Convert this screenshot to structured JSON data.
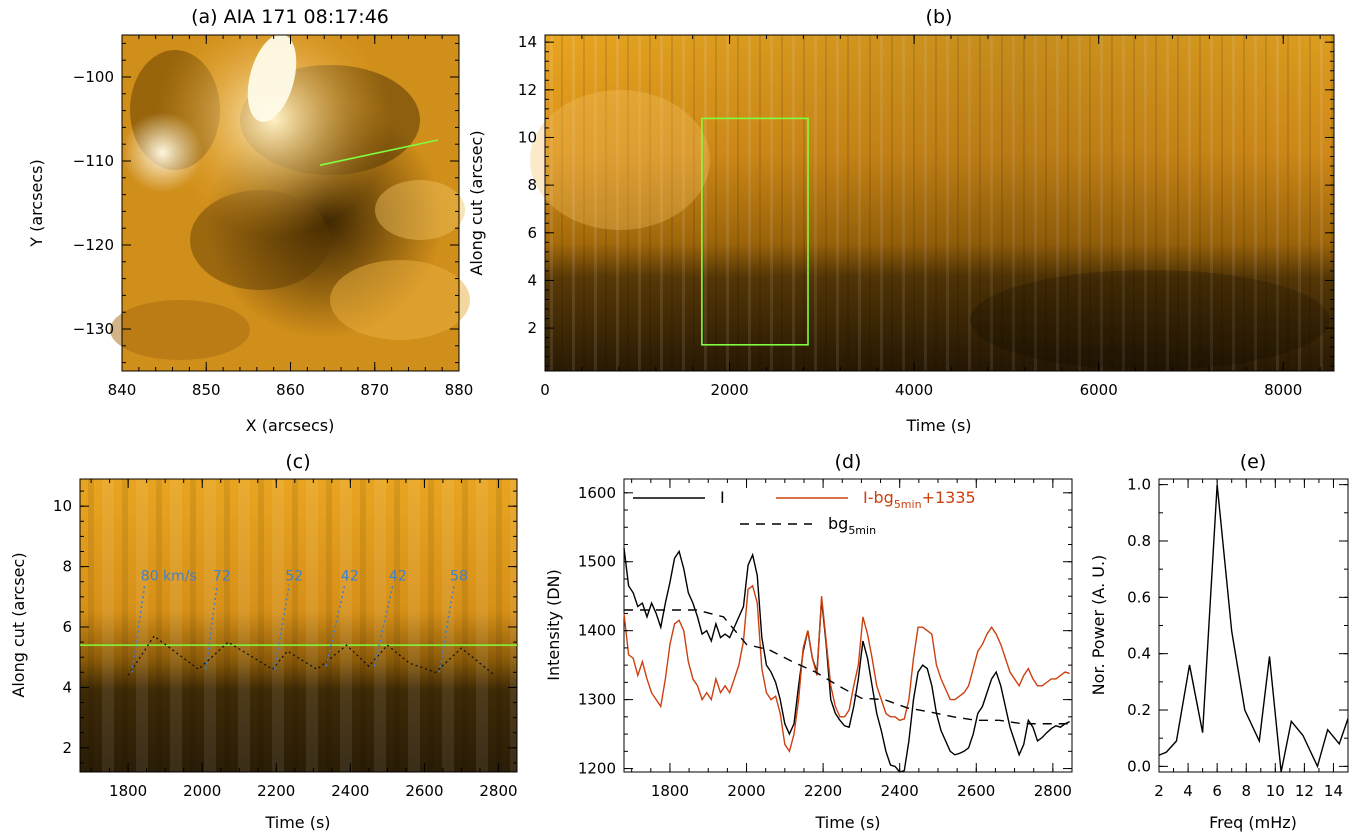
{
  "chart_data": [
    {
      "panel": "a",
      "type": "heatmap",
      "title": "(a) AIA 171 08:17:46",
      "xlabel": "X (arcsecs)",
      "ylabel": "Y (arcsecs)",
      "xlim": [
        840,
        880
      ],
      "ylim": [
        -135,
        -95
      ],
      "xticks": [
        840,
        850,
        860,
        870,
        880
      ],
      "yticks": [
        -100,
        -110,
        -120,
        -130
      ],
      "cut_line": {
        "x": [
          863.5,
          877.5
        ],
        "y": [
          -110.5,
          -107.5
        ],
        "color": "#7fff3f"
      }
    },
    {
      "panel": "b",
      "type": "heatmap",
      "title": "(b)",
      "xlabel": "Time (s)",
      "ylabel": "Along cut (arcsec)",
      "xlim": [
        0,
        8550
      ],
      "ylim": [
        0.2,
        14.3
      ],
      "xticks": [
        0,
        2000,
        4000,
        6000,
        8000
      ],
      "yticks": [
        2,
        4,
        6,
        8,
        10,
        12,
        14
      ],
      "box": {
        "x": [
          1700,
          2850
        ],
        "y": [
          1.3,
          10.8
        ],
        "color": "#7fff3f"
      }
    },
    {
      "panel": "c",
      "type": "heatmap",
      "title": "(c)",
      "xlabel": "Time (s)",
      "ylabel": "Along cut (arcsec)",
      "xlim": [
        1670,
        2850
      ],
      "ylim": [
        1.2,
        10.9
      ],
      "xticks": [
        1800,
        2000,
        2200,
        2400,
        2600,
        2800
      ],
      "yticks": [
        2,
        4,
        6,
        8,
        10
      ],
      "hline": {
        "y": 5.4,
        "color": "#7fff3f"
      },
      "track": {
        "x": [
          1800,
          1870,
          1990,
          2070,
          2190,
          2230,
          2310,
          2390,
          2450,
          2500,
          2560,
          2630,
          2700,
          2790
        ],
        "y": [
          4.4,
          5.7,
          4.6,
          5.5,
          4.6,
          5.2,
          4.6,
          5.4,
          4.7,
          5.4,
          4.8,
          4.5,
          5.3,
          4.4
        ]
      },
      "speed_fits": [
        {
          "label": "80 km/s",
          "x": [
            1810,
            1845
          ],
          "y": [
            4.5,
            7.4
          ]
        },
        {
          "label": "72",
          "x": [
            2010,
            2040
          ],
          "y": [
            4.6,
            7.4
          ]
        },
        {
          "label": "52",
          "x": [
            2195,
            2235
          ],
          "y": [
            4.6,
            7.4
          ]
        },
        {
          "label": "42",
          "x": [
            2335,
            2385
          ],
          "y": [
            4.7,
            7.4
          ]
        },
        {
          "label": "42",
          "x": [
            2465,
            2515
          ],
          "y": [
            4.7,
            7.4
          ]
        },
        {
          "label": "58",
          "x": [
            2640,
            2680
          ],
          "y": [
            4.5,
            7.4
          ]
        }
      ]
    },
    {
      "panel": "d",
      "type": "line",
      "title": "(d)",
      "xlabel": "Time (s)",
      "ylabel": "Intensity (DN)",
      "xlim": [
        1680,
        2850
      ],
      "ylim": [
        1195,
        1620
      ],
      "xticks": [
        1800,
        2000,
        2200,
        2400,
        2600,
        2800
      ],
      "yticks": [
        1200,
        1300,
        1400,
        1500,
        1600
      ],
      "legend": {
        "I": "I",
        "detrended_base": "I-bg",
        "detrended_sub": "5min",
        "detrended_tail": "+1335",
        "bg_base": "bg",
        "bg_sub": "5min"
      },
      "series": [
        {
          "key": "I",
          "color": "#000000",
          "dash": "",
          "x": [
            1680,
            1692,
            1704,
            1716,
            1728,
            1740,
            1752,
            1764,
            1776,
            1788,
            1800,
            1812,
            1824,
            1836,
            1848,
            1860,
            1872,
            1884,
            1896,
            1908,
            1920,
            1932,
            1944,
            1956,
            1968,
            1980,
            1992,
            2004,
            2016,
            2028,
            2040,
            2052,
            2064,
            2076,
            2088,
            2100,
            2112,
            2124,
            2136,
            2148,
            2160,
            2172,
            2184,
            2196,
            2208,
            2220,
            2232,
            2244,
            2256,
            2268,
            2280,
            2292,
            2304,
            2316,
            2328,
            2340,
            2352,
            2364,
            2376,
            2388,
            2400,
            2412,
            2424,
            2436,
            2448,
            2460,
            2472,
            2484,
            2496,
            2508,
            2520,
            2532,
            2544,
            2556,
            2568,
            2580,
            2592,
            2604,
            2616,
            2628,
            2640,
            2652,
            2664,
            2676,
            2688,
            2700,
            2712,
            2724,
            2736,
            2748,
            2760,
            2772,
            2784,
            2796,
            2808,
            2820,
            2832,
            2844
          ],
          "y": [
            1520,
            1465,
            1455,
            1435,
            1440,
            1420,
            1440,
            1425,
            1405,
            1440,
            1470,
            1505,
            1515,
            1490,
            1455,
            1440,
            1420,
            1395,
            1400,
            1385,
            1410,
            1390,
            1395,
            1390,
            1405,
            1420,
            1435,
            1495,
            1510,
            1480,
            1390,
            1350,
            1340,
            1325,
            1300,
            1265,
            1250,
            1265,
            1320,
            1370,
            1400,
            1360,
            1340,
            1445,
            1380,
            1300,
            1280,
            1270,
            1262,
            1260,
            1290,
            1330,
            1385,
            1360,
            1320,
            1280,
            1255,
            1225,
            1205,
            1203,
            1195,
            1197,
            1240,
            1300,
            1340,
            1350,
            1345,
            1320,
            1280,
            1255,
            1240,
            1225,
            1220,
            1222,
            1225,
            1230,
            1250,
            1280,
            1290,
            1310,
            1330,
            1340,
            1320,
            1290,
            1260,
            1240,
            1220,
            1235,
            1270,
            1260,
            1240,
            1245,
            1252,
            1258,
            1262,
            1260,
            1265,
            1268
          ]
        },
        {
          "key": "detrended",
          "color": "#cc4010",
          "dash": "",
          "x": [
            1680,
            1692,
            1704,
            1716,
            1728,
            1740,
            1752,
            1764,
            1776,
            1788,
            1800,
            1812,
            1824,
            1836,
            1848,
            1860,
            1872,
            1884,
            1896,
            1908,
            1920,
            1932,
            1944,
            1956,
            1968,
            1980,
            1992,
            2004,
            2016,
            2028,
            2040,
            2052,
            2064,
            2076,
            2088,
            2100,
            2112,
            2124,
            2136,
            2148,
            2160,
            2172,
            2184,
            2196,
            2208,
            2220,
            2232,
            2244,
            2256,
            2268,
            2280,
            2292,
            2304,
            2316,
            2328,
            2340,
            2352,
            2364,
            2376,
            2388,
            2400,
            2412,
            2424,
            2436,
            2448,
            2460,
            2472,
            2484,
            2496,
            2508,
            2520,
            2532,
            2544,
            2556,
            2568,
            2580,
            2592,
            2604,
            2616,
            2628,
            2640,
            2652,
            2664,
            2676,
            2688,
            2700,
            2712,
            2724,
            2736,
            2748,
            2760,
            2772,
            2784,
            2796,
            2808,
            2820,
            2832,
            2844
          ],
          "y": [
            1425,
            1365,
            1360,
            1335,
            1355,
            1330,
            1310,
            1300,
            1290,
            1330,
            1380,
            1410,
            1415,
            1400,
            1355,
            1330,
            1320,
            1300,
            1310,
            1300,
            1330,
            1310,
            1320,
            1310,
            1330,
            1350,
            1385,
            1460,
            1465,
            1440,
            1345,
            1310,
            1300,
            1305,
            1280,
            1235,
            1225,
            1250,
            1300,
            1375,
            1400,
            1360,
            1335,
            1450,
            1385,
            1320,
            1290,
            1275,
            1275,
            1285,
            1320,
            1350,
            1420,
            1395,
            1360,
            1320,
            1300,
            1280,
            1275,
            1275,
            1270,
            1272,
            1300,
            1360,
            1405,
            1405,
            1400,
            1395,
            1350,
            1330,
            1315,
            1300,
            1300,
            1305,
            1310,
            1320,
            1345,
            1370,
            1380,
            1395,
            1405,
            1395,
            1380,
            1360,
            1340,
            1330,
            1320,
            1335,
            1345,
            1330,
            1320,
            1320,
            1325,
            1330,
            1330,
            1335,
            1340,
            1338
          ]
        },
        {
          "key": "bg",
          "color": "#000000",
          "dash": "9 7",
          "x": [
            1680,
            1750,
            1800,
            1870,
            1940,
            2000,
            2060,
            2120,
            2180,
            2240,
            2300,
            2360,
            2420,
            2480,
            2540,
            2600,
            2660,
            2720,
            2780,
            2845
          ],
          "y": [
            1430,
            1430,
            1430,
            1430,
            1420,
            1380,
            1372,
            1355,
            1340,
            1320,
            1302,
            1300,
            1288,
            1282,
            1275,
            1270,
            1270,
            1265,
            1265,
            1265
          ]
        }
      ]
    },
    {
      "panel": "e",
      "type": "line",
      "title": "(e)",
      "xlabel": "Freq (mHz)",
      "ylabel": "Nor. Power (A. U.)",
      "xlim": [
        2,
        15
      ],
      "ylim": [
        -0.02,
        1.02
      ],
      "xticks": [
        2,
        4,
        6,
        8,
        10,
        12,
        14
      ],
      "yticks": [
        0.0,
        0.2,
        0.4,
        0.6,
        0.8,
        1.0
      ],
      "ytick_labels": [
        "0.0",
        "0.2",
        "0.4",
        "0.6",
        "0.8",
        "1.0"
      ],
      "series": [
        {
          "key": "power",
          "color": "#000000",
          "x": [
            2,
            2.5,
            3.2,
            4.1,
            5.0,
            6.0,
            7.0,
            7.9,
            8.9,
            9.6,
            10.4,
            11.1,
            11.9,
            12.9,
            13.6,
            14.4,
            15
          ],
          "y": [
            0.04,
            0.05,
            0.09,
            0.36,
            0.12,
            1.0,
            0.48,
            0.2,
            0.09,
            0.39,
            -0.02,
            0.16,
            0.11,
            0.0,
            0.13,
            0.08,
            0.17
          ]
        }
      ]
    }
  ]
}
